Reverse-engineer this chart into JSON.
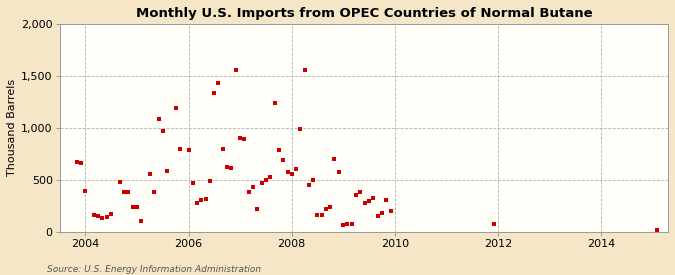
{
  "title": "Monthly U.S. Imports from OPEC Countries of Normal Butane",
  "ylabel": "Thousand Barrels",
  "source": "Source: U.S. Energy Information Administration",
  "background_color": "#F5E6C8",
  "plot_background_color": "#FFFEF8",
  "marker_color": "#CC0000",
  "ylim": [
    0,
    2000
  ],
  "yticks": [
    0,
    500,
    1000,
    1500,
    2000
  ],
  "xlim": [
    2003.5,
    2015.3
  ],
  "xticks": [
    2004,
    2006,
    2008,
    2010,
    2012,
    2014
  ],
  "x": [
    2003.83,
    2003.92,
    2004.0,
    2004.17,
    2004.25,
    2004.33,
    2004.42,
    2004.5,
    2004.67,
    2004.75,
    2004.83,
    2004.92,
    2005.0,
    2005.08,
    2005.25,
    2005.33,
    2005.42,
    2005.5,
    2005.58,
    2005.75,
    2005.83,
    2006.0,
    2006.08,
    2006.17,
    2006.25,
    2006.33,
    2006.42,
    2006.5,
    2006.58,
    2006.67,
    2006.75,
    2006.83,
    2006.92,
    2007.0,
    2007.08,
    2007.17,
    2007.25,
    2007.33,
    2007.42,
    2007.5,
    2007.58,
    2007.67,
    2007.75,
    2007.83,
    2007.92,
    2008.0,
    2008.08,
    2008.17,
    2008.25,
    2008.33,
    2008.42,
    2008.5,
    2008.58,
    2008.67,
    2008.75,
    2008.83,
    2008.92,
    2009.0,
    2009.08,
    2009.17,
    2009.25,
    2009.33,
    2009.42,
    2009.5,
    2009.58,
    2009.67,
    2009.75,
    2009.83,
    2009.92,
    2011.92,
    2015.08
  ],
  "y": [
    670,
    660,
    390,
    160,
    150,
    130,
    140,
    170,
    480,
    380,
    380,
    240,
    240,
    100,
    560,
    380,
    1090,
    970,
    590,
    1190,
    800,
    790,
    470,
    280,
    310,
    320,
    490,
    1340,
    1430,
    800,
    620,
    610,
    1560,
    900,
    890,
    380,
    430,
    220,
    470,
    500,
    530,
    1240,
    790,
    690,
    580,
    560,
    600,
    990,
    1560,
    450,
    500,
    160,
    160,
    220,
    240,
    700,
    580,
    70,
    80,
    80,
    350,
    380,
    280,
    300,
    330,
    150,
    180,
    310,
    200,
    80,
    20
  ]
}
